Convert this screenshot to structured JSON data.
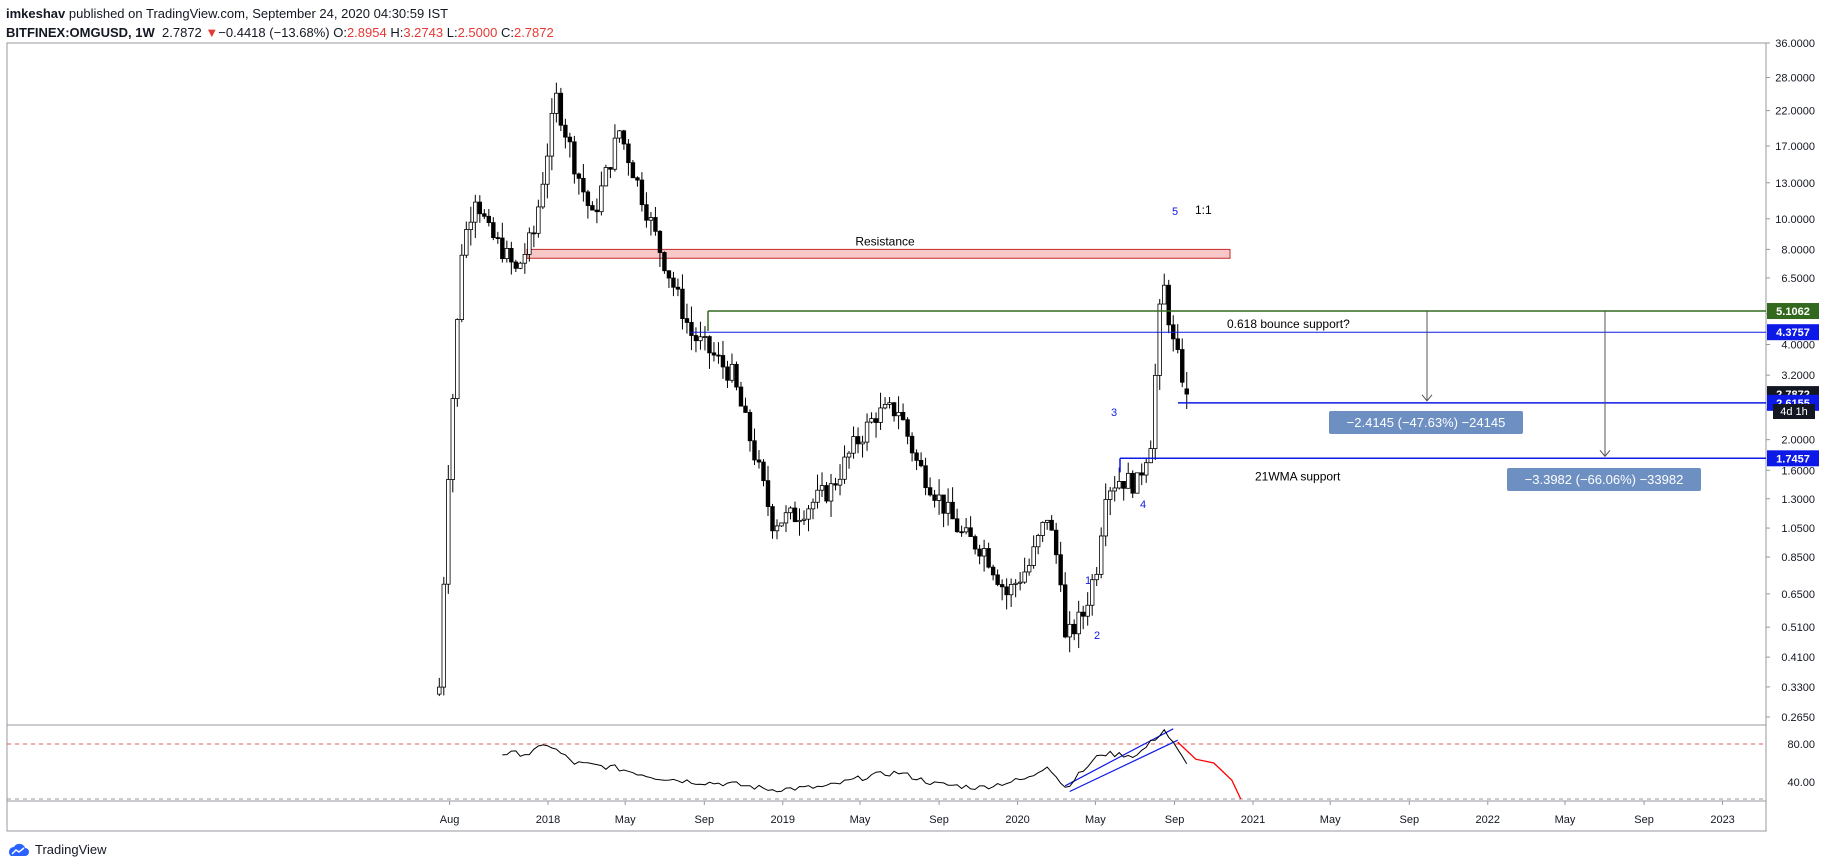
{
  "header": {
    "line1_user": "imkeshav",
    "line1_rest": " published on TradingView.com, September 24, 2020 04:30:59 IST",
    "symbol": "BITFINEX:OMGUSD, 1W",
    "last": "2.7872",
    "change_arrow": "▼",
    "change": "−0.4418 (−13.68%)",
    "o_label": "O:",
    "o_val": "2.8954",
    "h_label": "H:",
    "h_val": "3.2743",
    "l_label": "L:",
    "l_val": "2.5000",
    "c_label": "C:",
    "c_val": "2.7872"
  },
  "footer": {
    "brand": "TradingView",
    "logo_icon": "tradingview-cloud-icon"
  },
  "colors": {
    "up": "#ffffff",
    "down": "#000000",
    "resistance_fill": "#f8c8c8",
    "resistance_border": "#c62828",
    "fib_line": "#33691e",
    "level_blue": "#0d19e6",
    "measure_box": "#6d8fc2",
    "rsi_line": "#000000",
    "rsi_projection": "#ff0000"
  },
  "chart_data": {
    "type": "candlestick",
    "ylim": [
      0.25,
      36
    ],
    "log_scale": true,
    "y_ticks": [
      "36.0000",
      "28.0000",
      "22.0000",
      "17.0000",
      "13.0000",
      "10.0000",
      "8.0000",
      "6.5000",
      "5.0000",
      "4.0000",
      "3.2000",
      "2.5000",
      "2.0000",
      "1.6000",
      "1.3000",
      "1.0500",
      "0.8500",
      "0.6500",
      "0.5100",
      "0.4100",
      "0.3300",
      "0.2650"
    ],
    "x_ticks": [
      "Aug",
      "2018",
      "May",
      "Sep",
      "2019",
      "May",
      "Sep",
      "2020",
      "May",
      "Sep",
      "2021",
      "May",
      "Sep",
      "2022",
      "May",
      "Sep",
      "2023"
    ],
    "price_series": [
      {
        "date": "2017-07-16",
        "value": 0.33
      },
      {
        "date": "2017-07-30",
        "value": 1.6
      },
      {
        "date": "2017-08-20",
        "value": 8.0
      },
      {
        "date": "2017-09-10",
        "value": 12.0
      },
      {
        "date": "2017-10-01",
        "value": 9.0
      },
      {
        "date": "2017-10-22",
        "value": 8.0
      },
      {
        "date": "2017-11-12",
        "value": 6.8
      },
      {
        "date": "2017-12-10",
        "value": 9.0
      },
      {
        "date": "2018-01-07",
        "value": 20.0
      },
      {
        "date": "2018-01-14",
        "value": 24.0
      },
      {
        "date": "2018-02-11",
        "value": 15.0
      },
      {
        "date": "2018-03-11",
        "value": 10.0
      },
      {
        "date": "2018-04-22",
        "value": 19.0
      },
      {
        "date": "2018-05-20",
        "value": 13.0
      },
      {
        "date": "2018-06-24",
        "value": 8.0
      },
      {
        "date": "2018-08-12",
        "value": 4.3
      },
      {
        "date": "2018-09-09",
        "value": 3.8
      },
      {
        "date": "2018-10-14",
        "value": 3.2
      },
      {
        "date": "2018-11-18",
        "value": 1.8
      },
      {
        "date": "2018-12-16",
        "value": 1.1
      },
      {
        "date": "2019-01-20",
        "value": 1.15
      },
      {
        "date": "2019-03-17",
        "value": 1.4
      },
      {
        "date": "2019-04-21",
        "value": 1.9
      },
      {
        "date": "2019-05-26",
        "value": 2.4
      },
      {
        "date": "2019-06-30",
        "value": 2.5
      },
      {
        "date": "2019-07-28",
        "value": 1.7
      },
      {
        "date": "2019-09-01",
        "value": 1.3
      },
      {
        "date": "2019-10-06",
        "value": 1.0
      },
      {
        "date": "2019-11-10",
        "value": 0.9
      },
      {
        "date": "2019-12-15",
        "value": 0.65
      },
      {
        "date": "2020-01-19",
        "value": 0.8
      },
      {
        "date": "2020-02-16",
        "value": 1.15
      },
      {
        "date": "2020-03-08",
        "value": 0.75
      },
      {
        "date": "2020-03-15",
        "value": 0.46
      },
      {
        "date": "2020-04-12",
        "value": 0.56
      },
      {
        "date": "2020-05-03",
        "value": 0.8
      },
      {
        "date": "2020-05-17",
        "value": 1.4
      },
      {
        "date": "2020-06-07",
        "value": 1.5
      },
      {
        "date": "2020-07-05",
        "value": 1.45
      },
      {
        "date": "2020-07-26",
        "value": 2.0
      },
      {
        "date": "2020-08-09",
        "value": 5.0
      },
      {
        "date": "2020-08-16",
        "value": 6.0
      },
      {
        "date": "2020-08-30",
        "value": 4.0
      },
      {
        "date": "2020-09-13",
        "value": 3.2
      },
      {
        "date": "2020-09-20",
        "value": 2.79
      }
    ],
    "last_candle": {
      "open": 2.8954,
      "high": 3.2743,
      "low": 2.5,
      "close": 2.7872
    },
    "price_labels": [
      {
        "value": 5.1062,
        "text": "5.1062",
        "color": "#33691e"
      },
      {
        "value": 4.3757,
        "text": "4.3757",
        "color": "#0d19e6"
      },
      {
        "value": 2.7872,
        "text": "2.7872",
        "color": "#131722"
      },
      {
        "value": 2.6155,
        "text": "2.6155",
        "color": "#0d19e6"
      },
      {
        "value": 1.7457,
        "text": "1.7457",
        "color": "#0d19e6"
      }
    ],
    "countdown": "4d 1h",
    "annotations": {
      "resistance": {
        "text": "Resistance",
        "low": 7.5,
        "high": 8.0
      },
      "fib": {
        "text": "0.618 bounce support?",
        "value": 5.1062
      },
      "wma": {
        "text": "21WMA support",
        "value": 1.7457
      },
      "ratio": "1:1",
      "measure1": "−2.4145 (−47.63%) −24145",
      "measure2": "−3.3982 (−66.06%) −33982",
      "wave_labels": [
        "1",
        "2",
        "3",
        "4",
        "5"
      ]
    },
    "rsi": {
      "ylim": [
        20,
        100
      ],
      "ticks": [
        "80.00",
        "40.00"
      ],
      "overbought": 80,
      "series": [
        {
          "date": "2017-10-22",
          "value": 70
        },
        {
          "date": "2017-12-03",
          "value": 70
        },
        {
          "date": "2017-12-31",
          "value": 80
        },
        {
          "date": "2018-02-11",
          "value": 60
        },
        {
          "date": "2018-04-15",
          "value": 55
        },
        {
          "date": "2018-06-17",
          "value": 45
        },
        {
          "date": "2018-08-19",
          "value": 40
        },
        {
          "date": "2018-10-14",
          "value": 38
        },
        {
          "date": "2018-12-16",
          "value": 32
        },
        {
          "date": "2019-03-10",
          "value": 35
        },
        {
          "date": "2019-05-19",
          "value": 47
        },
        {
          "date": "2019-06-30",
          "value": 50
        },
        {
          "date": "2019-08-25",
          "value": 38
        },
        {
          "date": "2019-11-03",
          "value": 34
        },
        {
          "date": "2020-01-19",
          "value": 44
        },
        {
          "date": "2020-02-16",
          "value": 58
        },
        {
          "date": "2020-03-15",
          "value": 34
        },
        {
          "date": "2020-05-10",
          "value": 70
        },
        {
          "date": "2020-07-05",
          "value": 68
        },
        {
          "date": "2020-08-16",
          "value": 95
        },
        {
          "date": "2020-09-20",
          "value": 58
        }
      ],
      "projection": [
        {
          "date": "2020-09-06",
          "value": 82
        },
        {
          "date": "2020-10-04",
          "value": 64
        },
        {
          "date": "2020-11-01",
          "value": 60
        },
        {
          "date": "2020-11-29",
          "value": 42
        },
        {
          "date": "2020-12-13",
          "value": 22
        }
      ],
      "channel": [
        {
          "from": {
            "date": "2020-03-15",
            "value": 36
          },
          "to": {
            "date": "2020-08-30",
            "value": 96
          }
        },
        {
          "from": {
            "date": "2020-03-22",
            "value": 30
          },
          "to": {
            "date": "2020-09-06",
            "value": 84
          }
        }
      ]
    }
  }
}
